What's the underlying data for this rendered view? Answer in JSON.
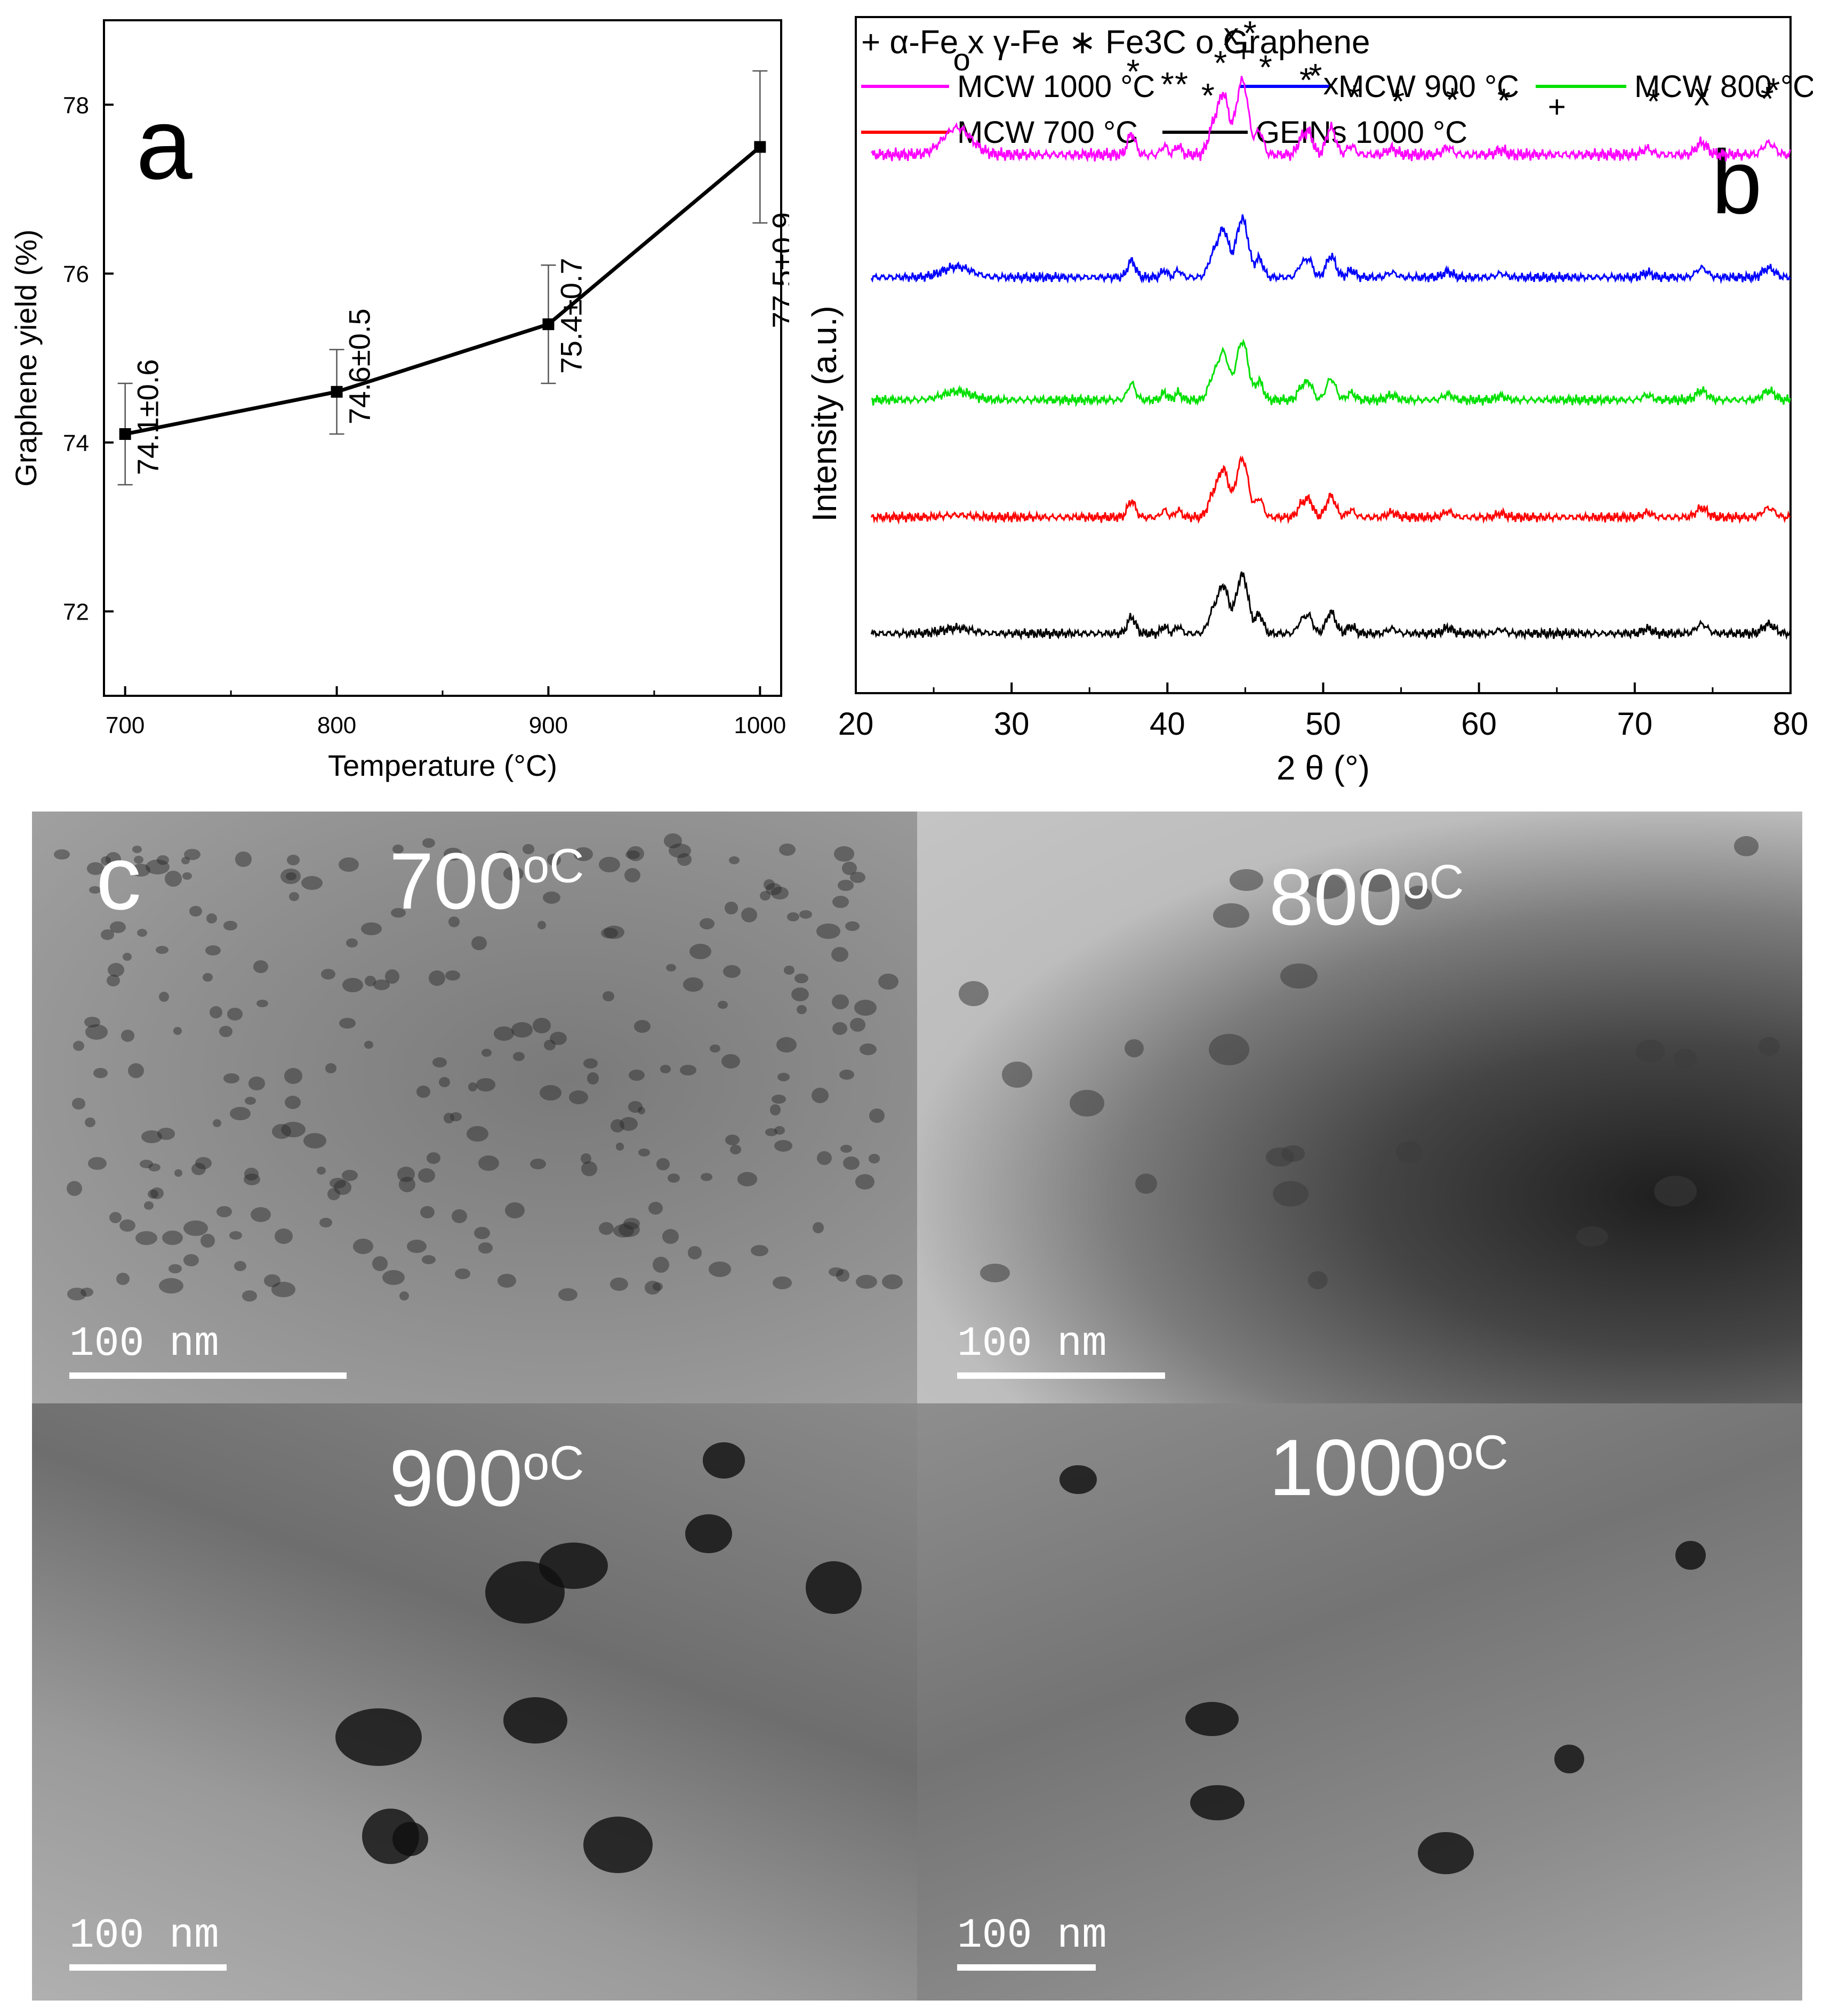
{
  "panel_a": {
    "letter": "a",
    "chart_data": {
      "type": "line",
      "x": [
        700,
        800,
        900,
        1000
      ],
      "values": [
        74.1,
        74.6,
        75.4,
        77.5
      ],
      "errors": [
        0.6,
        0.5,
        0.7,
        0.9
      ],
      "point_labels": [
        "74.1±0.6",
        "74.6±0.5",
        "75.4±0.7",
        "77.5±0.9"
      ],
      "xlabel": "Temperature (°C)",
      "ylabel": "Graphene yield (%)",
      "xticks": [
        700,
        800,
        900,
        1000
      ],
      "yticks": [
        72,
        74,
        76,
        78
      ],
      "xlim": [
        690,
        1010
      ],
      "ylim": [
        71,
        79
      ],
      "grid": false,
      "line_color": "#000000"
    }
  },
  "panel_b": {
    "letter": "b",
    "chart_data": {
      "type": "line",
      "xlabel": "2 θ (°)",
      "ylabel": "Intensity (a.u.)",
      "xticks": [
        20,
        30,
        40,
        50,
        60,
        70,
        80
      ],
      "xlim": [
        20,
        80
      ],
      "grid": false,
      "legend_title": "+ α-Fe x γ-Fe ∗ Fe3C o Graphene",
      "legend_placement": "top",
      "series": [
        {
          "name": "MCW 1000 °C",
          "color": "#ff00ff",
          "offset": 4
        },
        {
          "name": "MCW 900 °C",
          "color": "#0000ff",
          "offset": 3
        },
        {
          "name": "MCW 800 °C",
          "color": "#00e000",
          "offset": 2
        },
        {
          "name": "MCW 700 °C",
          "color": "#ff0000",
          "offset": 1
        },
        {
          "name": "GEINs 1000 °C",
          "color": "#000000",
          "offset": 0
        }
      ],
      "peaks": [
        {
          "x": 26.5,
          "h": 0.45,
          "w": 0.9
        },
        {
          "x": 37.7,
          "h": 0.35,
          "w": 0.25
        },
        {
          "x": 39.8,
          "h": 0.15,
          "w": 0.2
        },
        {
          "x": 40.7,
          "h": 0.15,
          "w": 0.2
        },
        {
          "x": 42.9,
          "h": 0.4,
          "w": 0.3
        },
        {
          "x": 43.6,
          "h": 1.0,
          "w": 0.35
        },
        {
          "x": 44.6,
          "h": 0.75,
          "w": 0.3
        },
        {
          "x": 45.0,
          "h": 0.8,
          "w": 0.3
        },
        {
          "x": 45.9,
          "h": 0.4,
          "w": 0.25
        },
        {
          "x": 48.6,
          "h": 0.25,
          "w": 0.25
        },
        {
          "x": 49.1,
          "h": 0.35,
          "w": 0.25
        },
        {
          "x": 50.5,
          "h": 0.45,
          "w": 0.3
        },
        {
          "x": 51.8,
          "h": 0.15,
          "w": 0.25
        },
        {
          "x": 54.4,
          "h": 0.1,
          "w": 0.3
        },
        {
          "x": 58.0,
          "h": 0.12,
          "w": 0.3
        },
        {
          "x": 61.4,
          "h": 0.08,
          "w": 0.3
        },
        {
          "x": 70.8,
          "h": 0.1,
          "w": 0.3
        },
        {
          "x": 74.3,
          "h": 0.2,
          "w": 0.35
        },
        {
          "x": 78.4,
          "h": 0.12,
          "w": 0.3
        },
        {
          "x": 78.8,
          "h": 0.12,
          "w": 0.3
        }
      ],
      "markers": [
        {
          "x": 26.8,
          "label": "o",
          "level": 0.55
        },
        {
          "x": 37.8,
          "label": "*",
          "level": 0.4
        },
        {
          "x": 40.0,
          "label": "*",
          "level": 0.25
        },
        {
          "x": 40.9,
          "label": "*",
          "level": 0.25
        },
        {
          "x": 42.6,
          "label": "*",
          "level": 0.12
        },
        {
          "x": 43.4,
          "label": "*",
          "level": 0.5
        },
        {
          "x": 44.1,
          "label": "x",
          "level": 0.85
        },
        {
          "x": 44.9,
          "label": "+",
          "level": 0.65
        },
        {
          "x": 45.3,
          "label": "*",
          "level": 0.85
        },
        {
          "x": 46.3,
          "label": "*",
          "level": 0.45
        },
        {
          "x": 48.9,
          "label": "*",
          "level": 0.3
        },
        {
          "x": 49.5,
          "label": "*",
          "level": 0.35
        },
        {
          "x": 50.5,
          "label": "x",
          "level": 0.27
        },
        {
          "x": 52.0,
          "label": "*",
          "level": 0.1
        },
        {
          "x": 54.8,
          "label": "*",
          "level": 0.05
        },
        {
          "x": 58.3,
          "label": "*",
          "level": 0.07
        },
        {
          "x": 61.6,
          "label": "*",
          "level": 0.06
        },
        {
          "x": 65.0,
          "label": "+",
          "level": 0.0
        },
        {
          "x": 71.2,
          "label": "*",
          "level": 0.05
        },
        {
          "x": 74.3,
          "label": "x",
          "level": 0.14
        },
        {
          "x": 78.5,
          "label": "*",
          "level": 0.08
        },
        {
          "x": 78.9,
          "label": "*",
          "level": 0.18
        }
      ]
    }
  },
  "panel_c": {
    "letter": "c",
    "images": [
      {
        "temperature": "700",
        "unit": "oC",
        "scale": "100 nm"
      },
      {
        "temperature": "800",
        "unit": "oC",
        "scale": "100 nm"
      },
      {
        "temperature": "900",
        "unit": "oC",
        "scale": "100 nm"
      },
      {
        "temperature": "1000",
        "unit": "oC",
        "scale": "100 nm"
      }
    ]
  }
}
